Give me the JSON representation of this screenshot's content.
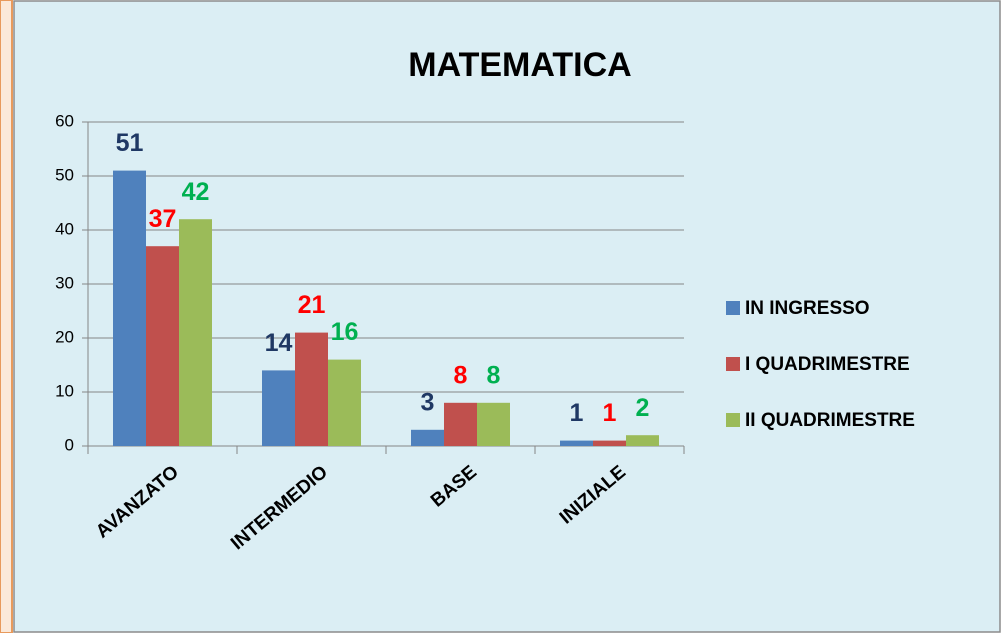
{
  "chart_data": {
    "type": "bar",
    "title": "MATEMATICA",
    "categories": [
      "AVANZATO",
      "INTERMEDIO",
      "BASE",
      "INIZIALE"
    ],
    "series": [
      {
        "name": "IN INGRESSO",
        "color": "#4f81bd",
        "label_color": "#1f3864",
        "values": [
          51,
          14,
          3,
          1
        ]
      },
      {
        "name": "I QUADRIMESTRE",
        "color": "#c0504d",
        "label_color": "#ff0000",
        "values": [
          37,
          21,
          8,
          1
        ]
      },
      {
        "name": "II QUADRIMESTRE",
        "color": "#9bbb59",
        "label_color": "#00b050",
        "values": [
          42,
          16,
          8,
          2
        ]
      }
    ],
    "ylim": [
      0,
      60
    ],
    "yticks": [
      0,
      10,
      20,
      30,
      40,
      50,
      60
    ],
    "grid": true,
    "legend": "right"
  }
}
